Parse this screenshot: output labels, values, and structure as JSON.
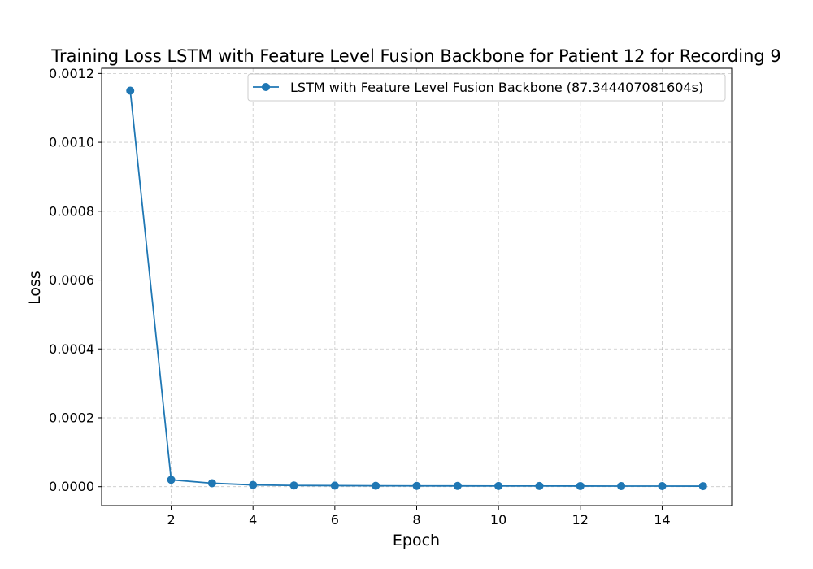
{
  "chart_data": {
    "type": "line",
    "title": "Training Loss LSTM with Feature Level Fusion Backbone for Patient 12 for Recording 9",
    "xlabel": "Epoch",
    "ylabel": "Loss",
    "xlim": [
      0.3,
      15.7
    ],
    "ylim": [
      -5.5e-05,
      0.001215
    ],
    "x_ticks": [
      2,
      4,
      6,
      8,
      10,
      12,
      14
    ],
    "x_tick_labels": [
      "2",
      "4",
      "6",
      "8",
      "10",
      "12",
      "14"
    ],
    "y_ticks": [
      0,
      0.0002,
      0.0004,
      0.0006,
      0.0008,
      0.001,
      0.0012
    ],
    "y_tick_labels": [
      "0.0000",
      "0.0002",
      "0.0004",
      "0.0006",
      "0.0008",
      "0.0010",
      "0.0012"
    ],
    "grid": true,
    "legend_position": "upper right",
    "series": [
      {
        "name": "LSTM with Feature Level Fusion Backbone (87.344407081604s)",
        "color": "#1f77b4",
        "marker": "circle",
        "x": [
          1,
          2,
          3,
          4,
          5,
          6,
          7,
          8,
          9,
          10,
          11,
          12,
          13,
          14,
          15
        ],
        "values": [
          0.00115,
          2e-05,
          1e-05,
          5e-06,
          3.5e-06,
          3e-06,
          2.5e-06,
          2.3e-06,
          2.1e-06,
          2e-06,
          1.9e-06,
          1.8e-06,
          1.7e-06,
          1.6e-06,
          1.5e-06
        ]
      }
    ]
  }
}
